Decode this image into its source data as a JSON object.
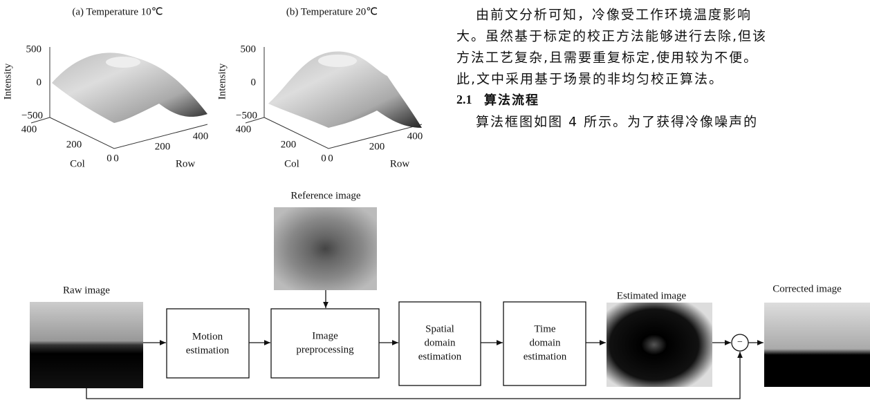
{
  "figures": [
    {
      "title": "(a) Temperature 10℃",
      "z_label": "Intensity",
      "z_ticks": [
        "500",
        "0",
        "−500"
      ],
      "col_label": "Col",
      "col_ticks": [
        "400",
        "200",
        "0"
      ],
      "row_label": "Row",
      "row_ticks": [
        "0",
        "200",
        "400"
      ]
    },
    {
      "title": "(b) Temperature 20℃",
      "z_label": "Intensity",
      "z_ticks": [
        "500",
        "0",
        "−500"
      ],
      "col_label": "Col",
      "col_ticks": [
        "400",
        "200",
        "0"
      ],
      "row_label": "Row",
      "row_ticks": [
        "0",
        "200",
        "400"
      ]
    }
  ],
  "text": {
    "lines": [
      "由前文分析可知，冷像受工作环境温度影响",
      "大。虽然基于标定的校正方法能够进行去除,但该",
      "方法工艺复杂,且需要重复标定,使用较为不便。",
      "此,文中采用基于场景的非均匀校正算法。"
    ],
    "heading_number": "2.1",
    "heading": "算法流程",
    "after_heading": "算法框图如图 4 所示。为了获得冷像噪声的"
  },
  "diagram": {
    "reference_image": "Reference image",
    "raw_image": "Raw image",
    "motion": [
      "Motion",
      "estimation"
    ],
    "preprocessing": [
      "Image",
      "preprocessing"
    ],
    "spatial": [
      "Spatial",
      "domain",
      "estimation"
    ],
    "time": [
      "Time",
      "domain",
      "estimation"
    ],
    "estimated_image": "Estimated image",
    "subtract": "−",
    "corrected_image": "Corrected image"
  }
}
